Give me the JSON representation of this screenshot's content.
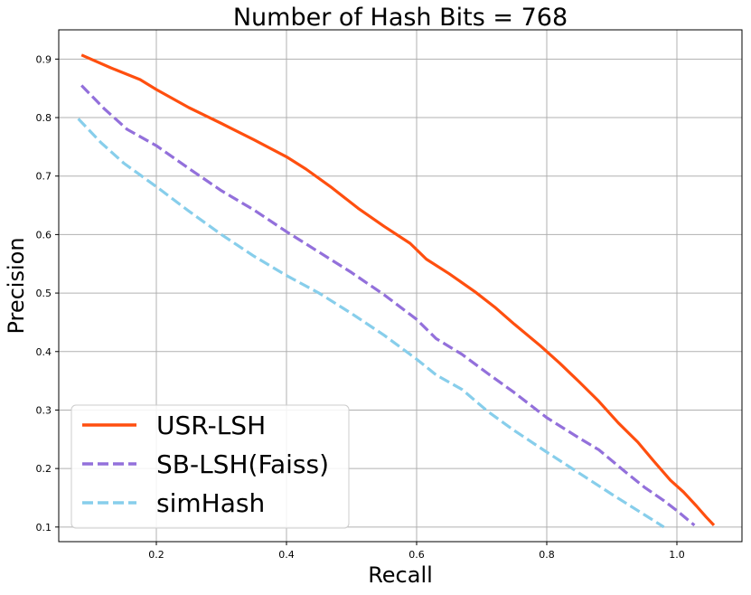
{
  "chart_data": {
    "type": "line",
    "title": "Number of Hash Bits = 768",
    "xlabel": "Recall",
    "ylabel": "Precision",
    "xlim": [
      0.05,
      1.1
    ],
    "ylim": [
      0.075,
      0.95
    ],
    "xticks": [
      0.2,
      0.4,
      0.6,
      0.8,
      1.0
    ],
    "xtick_labels": [
      "0.2",
      "0.4",
      "0.6",
      "0.8",
      "1.0"
    ],
    "yticks": [
      0.1,
      0.2,
      0.3,
      0.4,
      0.5,
      0.6,
      0.7,
      0.8,
      0.9
    ],
    "ytick_labels": [
      "0.1",
      "0.2",
      "0.3",
      "0.4",
      "0.5",
      "0.6",
      "0.7",
      "0.8",
      "0.9"
    ],
    "grid": true,
    "legend_position": "lower-left",
    "series": [
      {
        "name": "USR-LSH",
        "color": "#ff4f0f",
        "style": "solid",
        "x": [
          0.085,
          0.13,
          0.175,
          0.2,
          0.25,
          0.3,
          0.35,
          0.4,
          0.43,
          0.47,
          0.51,
          0.55,
          0.59,
          0.615,
          0.65,
          0.69,
          0.72,
          0.75,
          0.79,
          0.82,
          0.85,
          0.88,
          0.91,
          0.94,
          0.965,
          0.99,
          1.01,
          1.03,
          1.045,
          1.057
        ],
        "y": [
          0.907,
          0.885,
          0.865,
          0.848,
          0.817,
          0.79,
          0.762,
          0.733,
          0.712,
          0.68,
          0.645,
          0.614,
          0.585,
          0.558,
          0.533,
          0.502,
          0.476,
          0.447,
          0.41,
          0.38,
          0.348,
          0.315,
          0.278,
          0.245,
          0.212,
          0.18,
          0.16,
          0.136,
          0.117,
          0.103
        ]
      },
      {
        "name": "SB-LSH(Faiss)",
        "color": "#9370db",
        "style": "dashed",
        "x": [
          0.085,
          0.12,
          0.155,
          0.2,
          0.25,
          0.3,
          0.35,
          0.4,
          0.45,
          0.5,
          0.55,
          0.6,
          0.63,
          0.67,
          0.71,
          0.75,
          0.8,
          0.85,
          0.88,
          0.92,
          0.95,
          0.98,
          1.0,
          1.027
        ],
        "y": [
          0.855,
          0.815,
          0.78,
          0.752,
          0.713,
          0.675,
          0.642,
          0.605,
          0.57,
          0.535,
          0.497,
          0.455,
          0.422,
          0.395,
          0.362,
          0.33,
          0.287,
          0.252,
          0.232,
          0.195,
          0.168,
          0.145,
          0.128,
          0.103
        ]
      },
      {
        "name": "simHash",
        "color": "#87ceeb",
        "style": "dashed",
        "x": [
          0.08,
          0.115,
          0.15,
          0.2,
          0.25,
          0.3,
          0.35,
          0.4,
          0.45,
          0.5,
          0.55,
          0.6,
          0.63,
          0.67,
          0.71,
          0.75,
          0.8,
          0.85,
          0.9,
          0.94,
          0.98
        ],
        "y": [
          0.798,
          0.757,
          0.722,
          0.682,
          0.64,
          0.6,
          0.563,
          0.53,
          0.5,
          0.465,
          0.428,
          0.387,
          0.36,
          0.335,
          0.297,
          0.265,
          0.228,
          0.192,
          0.156,
          0.128,
          0.1
        ]
      }
    ]
  }
}
